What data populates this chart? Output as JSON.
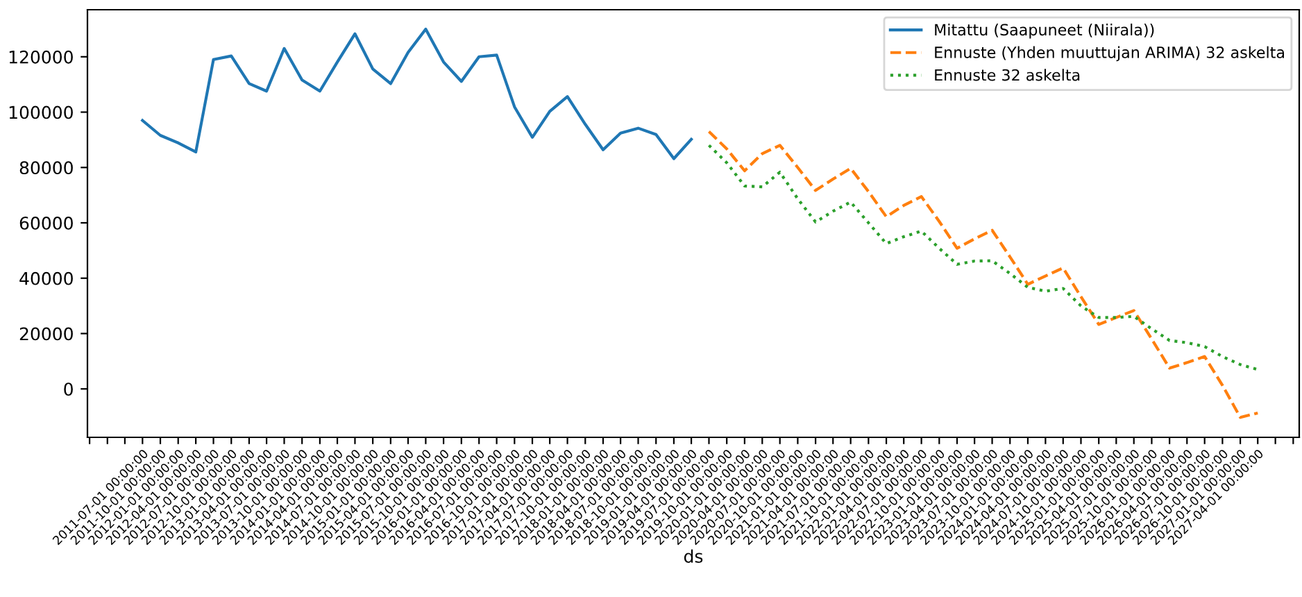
{
  "chart_data": {
    "type": "line",
    "xlabel": "ds",
    "x": [
      "2011-07-01",
      "2011-10-01",
      "2012-01-01",
      "2012-04-01",
      "2012-07-01",
      "2012-10-01",
      "2013-01-01",
      "2013-04-01",
      "2013-07-01",
      "2013-10-01",
      "2014-01-01",
      "2014-04-01",
      "2014-07-01",
      "2014-10-01",
      "2015-01-01",
      "2015-04-01",
      "2015-07-01",
      "2015-10-01",
      "2016-01-01",
      "2016-04-01",
      "2016-07-01",
      "2016-10-01",
      "2017-01-01",
      "2017-04-01",
      "2017-07-01",
      "2017-10-01",
      "2018-01-01",
      "2018-04-01",
      "2018-07-01",
      "2018-10-01",
      "2019-01-01",
      "2019-04-01",
      "2019-07-01",
      "2019-10-01",
      "2020-01-01",
      "2020-04-01",
      "2020-07-01",
      "2020-10-01",
      "2021-01-01",
      "2021-04-01",
      "2021-07-01",
      "2021-10-01",
      "2022-01-01",
      "2022-04-01",
      "2022-07-01",
      "2022-10-01",
      "2023-01-01",
      "2023-04-01",
      "2023-07-01",
      "2023-10-01",
      "2024-01-01",
      "2024-04-01",
      "2024-07-01",
      "2024-10-01",
      "2025-01-01",
      "2025-04-01",
      "2025-07-01",
      "2025-10-01",
      "2026-01-01",
      "2026-04-01",
      "2026-07-01",
      "2026-10-01",
      "2027-01-01",
      "2027-04-01"
    ],
    "series": [
      {
        "name": "Mitattu (Saapuneet (Niirala))",
        "color": "#1f77b4",
        "line_style": "solid",
        "values": [
          97000,
          91600,
          88900,
          85600,
          119000,
          120300,
          110300,
          107600,
          123000,
          111600,
          107600,
          118100,
          128300,
          115600,
          110300,
          121600,
          130000,
          118100,
          111100,
          120000,
          120600,
          101900,
          90900,
          100300,
          105600,
          95600,
          86400,
          92400,
          94200,
          91900,
          83200,
          90200,
          null,
          null,
          null,
          null,
          null,
          null,
          null,
          null,
          null,
          null,
          null,
          null,
          null,
          null,
          null,
          null,
          null,
          null,
          null,
          null,
          null,
          null,
          null,
          null,
          null,
          null,
          null,
          null,
          null,
          null,
          null,
          null
        ]
      },
      {
        "name": "Ennuste (Yhden muuttujan ARIMA) 32 askelta",
        "color": "#ff7f0e",
        "line_style": "dashed",
        "values": [
          null,
          null,
          null,
          null,
          null,
          null,
          null,
          null,
          null,
          null,
          null,
          null,
          null,
          null,
          null,
          null,
          null,
          null,
          null,
          null,
          null,
          null,
          null,
          null,
          null,
          null,
          null,
          null,
          null,
          null,
          null,
          null,
          93000,
          86700,
          78800,
          85000,
          88000,
          80000,
          71700,
          75800,
          79700,
          71300,
          62200,
          66300,
          69500,
          60500,
          50800,
          54200,
          57300,
          47700,
          37800,
          40800,
          43700,
          33300,
          23300,
          25800,
          28300,
          18000,
          7500,
          9500,
          11700,
          1300,
          -10300,
          -8700
        ]
      },
      {
        "name": "Ennuste 32 askelta",
        "color": "#2ca02c",
        "line_style": "dotted",
        "values": [
          null,
          null,
          null,
          null,
          null,
          null,
          null,
          null,
          null,
          null,
          null,
          null,
          null,
          null,
          null,
          null,
          null,
          null,
          null,
          null,
          null,
          null,
          null,
          null,
          null,
          null,
          null,
          null,
          null,
          null,
          null,
          null,
          88000,
          81700,
          73300,
          73000,
          78300,
          68700,
          60300,
          64200,
          67500,
          60000,
          52500,
          55000,
          57000,
          50800,
          45000,
          46200,
          46300,
          41700,
          36700,
          35300,
          36300,
          30000,
          25800,
          25800,
          26200,
          21700,
          17500,
          16700,
          15300,
          11700,
          8800,
          7000
        ]
      }
    ],
    "xlim": [
      "2010-09-20",
      "2027-11-01"
    ],
    "xticks": [
      {
        "value": "2010-10-01",
        "label": null
      },
      {
        "value": "2011-01-01",
        "label": null
      },
      {
        "value": "2011-04-01",
        "label": null
      },
      {
        "value": "2011-07-01",
        "label": "2011-07-01 00:00:00"
      },
      {
        "value": "2011-10-01",
        "label": "2011-10-01 00:00:00"
      },
      {
        "value": "2012-01-01",
        "label": "2012-01-01 00:00:00"
      },
      {
        "value": "2012-04-01",
        "label": "2012-04-01 00:00:00"
      },
      {
        "value": "2012-07-01",
        "label": "2012-07-01 00:00:00"
      },
      {
        "value": "2012-10-01",
        "label": "2012-10-01 00:00:00"
      },
      {
        "value": "2013-01-01",
        "label": "2013-01-01 00:00:00"
      },
      {
        "value": "2013-04-01",
        "label": "2013-04-01 00:00:00"
      },
      {
        "value": "2013-07-01",
        "label": "2013-07-01 00:00:00"
      },
      {
        "value": "2013-10-01",
        "label": "2013-10-01 00:00:00"
      },
      {
        "value": "2014-01-01",
        "label": "2014-01-01 00:00:00"
      },
      {
        "value": "2014-04-01",
        "label": "2014-04-01 00:00:00"
      },
      {
        "value": "2014-07-01",
        "label": "2014-07-01 00:00:00"
      },
      {
        "value": "2014-10-01",
        "label": "2014-10-01 00:00:00"
      },
      {
        "value": "2015-01-01",
        "label": "2015-01-01 00:00:00"
      },
      {
        "value": "2015-04-01",
        "label": "2015-04-01 00:00:00"
      },
      {
        "value": "2015-07-01",
        "label": "2015-07-01 00:00:00"
      },
      {
        "value": "2015-10-01",
        "label": "2015-10-01 00:00:00"
      },
      {
        "value": "2016-01-01",
        "label": "2016-01-01 00:00:00"
      },
      {
        "value": "2016-04-01",
        "label": "2016-04-01 00:00:00"
      },
      {
        "value": "2016-07-01",
        "label": "2016-07-01 00:00:00"
      },
      {
        "value": "2016-10-01",
        "label": "2016-10-01 00:00:00"
      },
      {
        "value": "2017-01-01",
        "label": "2017-01-01 00:00:00"
      },
      {
        "value": "2017-04-01",
        "label": "2017-04-01 00:00:00"
      },
      {
        "value": "2017-07-01",
        "label": "2017-07-01 00:00:00"
      },
      {
        "value": "2017-10-01",
        "label": "2017-10-01 00:00:00"
      },
      {
        "value": "2018-01-01",
        "label": "2018-01-01 00:00:00"
      },
      {
        "value": "2018-04-01",
        "label": "2018-04-01 00:00:00"
      },
      {
        "value": "2018-07-01",
        "label": "2018-07-01 00:00:00"
      },
      {
        "value": "2018-10-01",
        "label": "2018-10-01 00:00:00"
      },
      {
        "value": "2019-01-01",
        "label": "2019-01-01 00:00:00"
      },
      {
        "value": "2019-04-01",
        "label": "2019-04-01 00:00:00"
      },
      {
        "value": "2019-07-01",
        "label": "2019-07-01 00:00:00"
      },
      {
        "value": "2019-10-01",
        "label": "2019-10-01 00:00:00"
      },
      {
        "value": "2020-01-01",
        "label": "2020-01-01 00:00:00"
      },
      {
        "value": "2020-04-01",
        "label": "2020-04-01 00:00:00"
      },
      {
        "value": "2020-07-01",
        "label": "2020-07-01 00:00:00"
      },
      {
        "value": "2020-10-01",
        "label": "2020-10-01 00:00:00"
      },
      {
        "value": "2021-01-01",
        "label": "2021-01-01 00:00:00"
      },
      {
        "value": "2021-04-01",
        "label": "2021-04-01 00:00:00"
      },
      {
        "value": "2021-07-01",
        "label": "2021-07-01 00:00:00"
      },
      {
        "value": "2021-10-01",
        "label": "2021-10-01 00:00:00"
      },
      {
        "value": "2022-01-01",
        "label": "2022-01-01 00:00:00"
      },
      {
        "value": "2022-04-01",
        "label": "2022-04-01 00:00:00"
      },
      {
        "value": "2022-07-01",
        "label": "2022-07-01 00:00:00"
      },
      {
        "value": "2022-10-01",
        "label": "2022-10-01 00:00:00"
      },
      {
        "value": "2023-01-01",
        "label": "2023-01-01 00:00:00"
      },
      {
        "value": "2023-04-01",
        "label": "2023-04-01 00:00:00"
      },
      {
        "value": "2023-07-01",
        "label": "2023-07-01 00:00:00"
      },
      {
        "value": "2023-10-01",
        "label": "2023-10-01 00:00:00"
      },
      {
        "value": "2024-01-01",
        "label": "2024-01-01 00:00:00"
      },
      {
        "value": "2024-04-01",
        "label": "2024-04-01 00:00:00"
      },
      {
        "value": "2024-07-01",
        "label": "2024-07-01 00:00:00"
      },
      {
        "value": "2024-10-01",
        "label": "2024-10-01 00:00:00"
      },
      {
        "value": "2025-01-01",
        "label": "2025-01-01 00:00:00"
      },
      {
        "value": "2025-04-01",
        "label": "2025-04-01 00:00:00"
      },
      {
        "value": "2025-07-01",
        "label": "2025-07-01 00:00:00"
      },
      {
        "value": "2025-10-01",
        "label": "2025-10-01 00:00:00"
      },
      {
        "value": "2026-01-01",
        "label": "2026-01-01 00:00:00"
      },
      {
        "value": "2026-04-01",
        "label": "2026-04-01 00:00:00"
      },
      {
        "value": "2026-07-01",
        "label": "2026-07-01 00:00:00"
      },
      {
        "value": "2026-10-01",
        "label": "2026-10-01 00:00:00"
      },
      {
        "value": "2027-01-01",
        "label": "2027-01-01 00:00:00"
      },
      {
        "value": "2027-04-01",
        "label": "2027-04-01 00:00:00"
      },
      {
        "value": "2027-07-01",
        "label": null
      },
      {
        "value": "2027-10-01",
        "label": null
      }
    ],
    "ylim": [
      -17500,
      137000
    ],
    "yticks": [
      0,
      20000,
      40000,
      60000,
      80000,
      100000,
      120000
    ],
    "grid": false,
    "legend": "top right",
    "marker": "none"
  }
}
